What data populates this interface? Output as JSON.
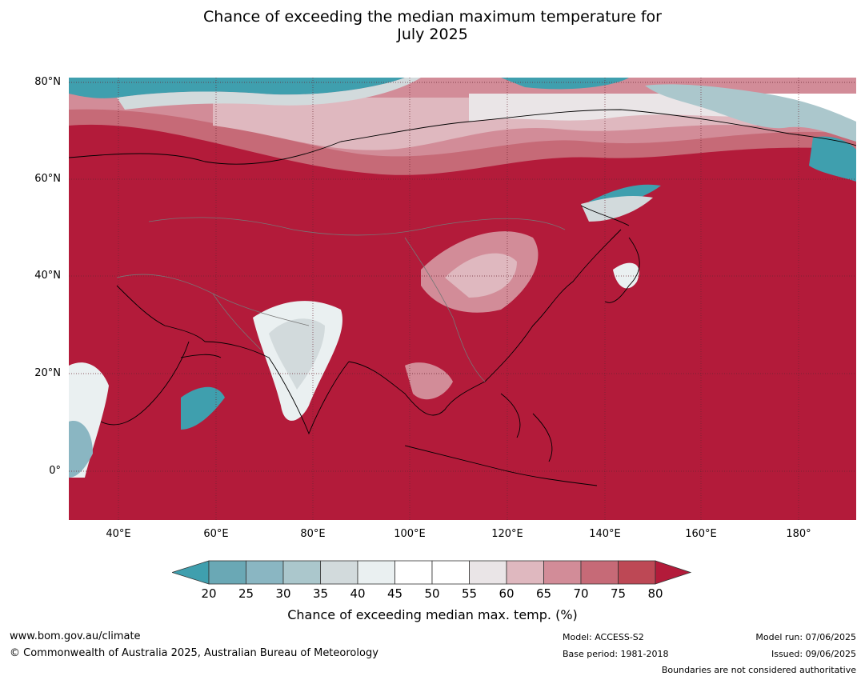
{
  "title": {
    "line1": "Chance of exceeding the median maximum temperature for",
    "line2": "July 2025"
  },
  "map": {
    "lat_labels": [
      "80°N",
      "60°N",
      "40°N",
      "20°N",
      "0°"
    ],
    "lon_labels": [
      "40°E",
      "60°E",
      "80°E",
      "100°E",
      "120°E",
      "140°E",
      "160°E",
      "180°"
    ],
    "dominant_color": "#b31b3a"
  },
  "colorbar": {
    "tick_labels": [
      "20",
      "25",
      "30",
      "35",
      "40",
      "45",
      "50",
      "55",
      "60",
      "65",
      "70",
      "75",
      "80"
    ],
    "colors": [
      "#3f9fae",
      "#6aa8b5",
      "#8ab6c2",
      "#abc7cc",
      "#d2dadc",
      "#eaf0f1",
      "#ffffff",
      "#ffffff",
      "#eae5e7",
      "#dfb8bf",
      "#d28c98",
      "#c66a77",
      "#bd4855",
      "#b31b3a"
    ],
    "title": "Chance of exceeding median max. temp. (%)"
  },
  "footer": {
    "website": "www.bom.gov.au/climate",
    "copyright": "© Commonwealth of Australia 2025, Australian Bureau of Meteorology",
    "model": "Model: ACCESS-S2",
    "base_period": "Base period: 1981-2018",
    "model_run": "Model run: 07/06/2025",
    "issued": "Issued: 09/06/2025",
    "boundaries": "Boundaries are not considered authoritative"
  }
}
